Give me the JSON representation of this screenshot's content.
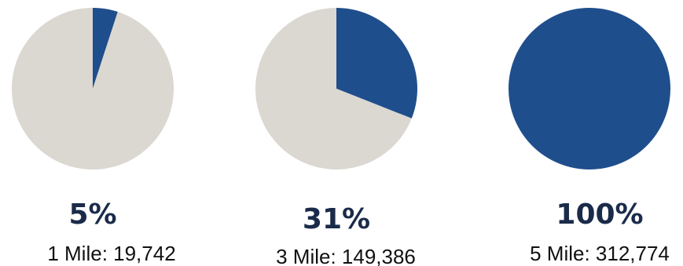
{
  "colors": {
    "filled": "#1f4e8c",
    "remainder": "#dbd7d1",
    "percent_text": "#1a2b4a",
    "caption_text": "#111111"
  },
  "chart_data": [
    {
      "type": "pie",
      "values": [
        5,
        95
      ],
      "percent_label": "5%",
      "caption": "1 Mile: 19,742"
    },
    {
      "type": "pie",
      "values": [
        31,
        69
      ],
      "percent_label": "31%",
      "caption": "3 Mile: 149,386"
    },
    {
      "type": "pie",
      "values": [
        100,
        0
      ],
      "percent_label": "100%",
      "caption": "5 Mile: 312,774"
    }
  ]
}
